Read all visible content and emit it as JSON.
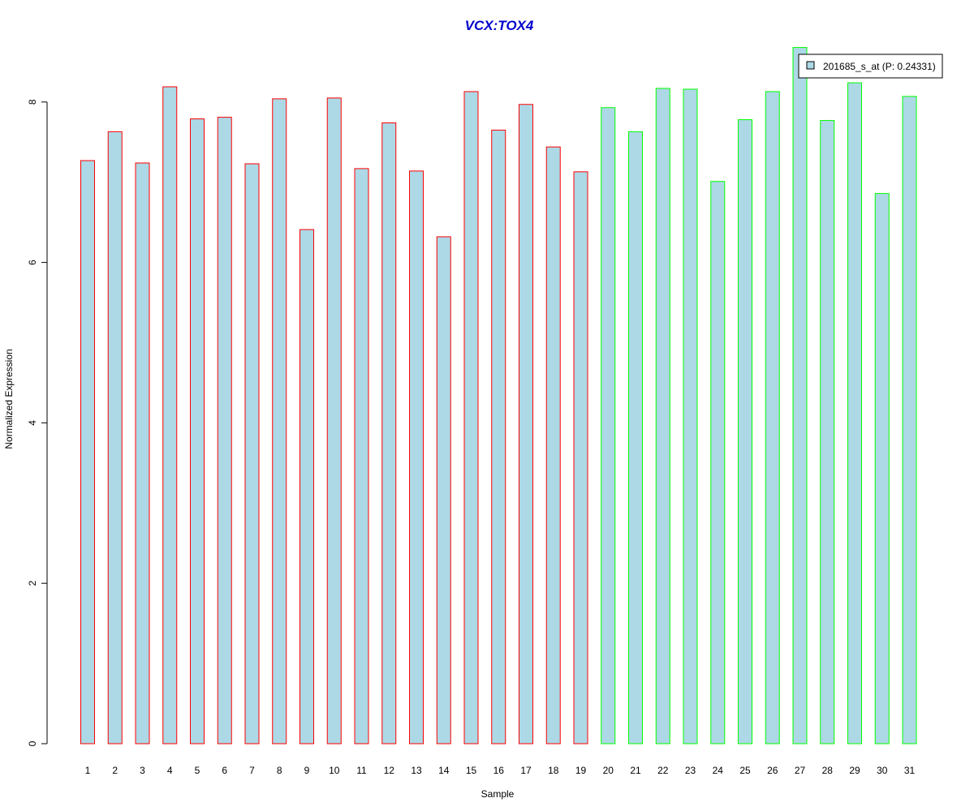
{
  "chart_data": {
    "type": "bar",
    "title": "VCX:TOX4",
    "xlabel": "Sample",
    "ylabel": "Normalized Expression",
    "categories": [
      "1",
      "2",
      "3",
      "4",
      "5",
      "6",
      "7",
      "8",
      "9",
      "10",
      "11",
      "12",
      "13",
      "14",
      "15",
      "16",
      "17",
      "18",
      "19",
      "20",
      "21",
      "22",
      "23",
      "24",
      "25",
      "26",
      "27",
      "28",
      "29",
      "30",
      "31"
    ],
    "series": [
      {
        "name": "201685_s_at (P: 0.24331)",
        "values": [
          7.27,
          7.63,
          7.24,
          8.19,
          7.79,
          7.81,
          7.23,
          8.04,
          6.41,
          8.05,
          7.17,
          7.74,
          7.14,
          6.32,
          8.13,
          7.65,
          7.97,
          7.44,
          7.13,
          7.93,
          7.63,
          8.17,
          8.16,
          7.01,
          7.78,
          8.13,
          8.68,
          7.77,
          8.24,
          6.86,
          8.07
        ]
      }
    ],
    "groups": [
      {
        "from": 1,
        "to": 19,
        "border_color": "#ff0000"
      },
      {
        "from": 20,
        "to": 31,
        "border_color": "#00ff00"
      }
    ],
    "ylim": [
      0,
      8.7
    ],
    "yticks": [
      0,
      2,
      4,
      6,
      8
    ],
    "bar_fill": "#add8e6",
    "title_color": "#0000cd",
    "legend": {
      "label": "201685_s_at (P: 0.24331)",
      "position": "top-right"
    },
    "grid": false
  }
}
